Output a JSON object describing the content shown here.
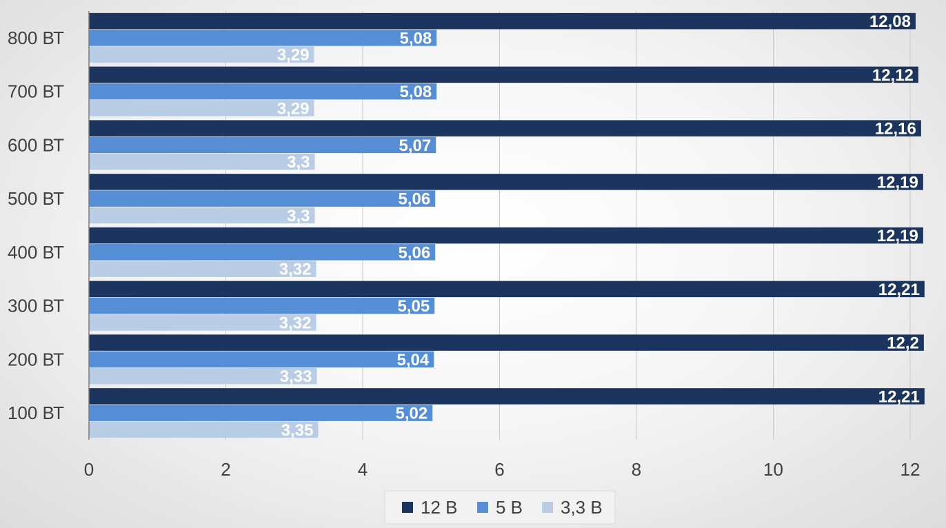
{
  "chart_data": {
    "type": "bar",
    "orientation": "horizontal",
    "categories": [
      "800 ВТ",
      "700 ВТ",
      "600 ВТ",
      "500 ВТ",
      "400 ВТ",
      "300 ВТ",
      "200 ВТ",
      "100 ВТ"
    ],
    "series": [
      {
        "name": "12 В",
        "color": "#1c355e",
        "values": [
          12.08,
          12.12,
          12.16,
          12.19,
          12.19,
          12.21,
          12.2,
          12.21
        ],
        "labels": [
          "12,08",
          "12,12",
          "12,16",
          "12,19",
          "12,19",
          "12,21",
          "12,2",
          "12,21"
        ]
      },
      {
        "name": "5 В",
        "color": "#558ed5",
        "values": [
          5.08,
          5.08,
          5.07,
          5.06,
          5.06,
          5.05,
          5.04,
          5.02
        ],
        "labels": [
          "5,08",
          "5,08",
          "5,07",
          "5,06",
          "5,06",
          "5,05",
          "5,04",
          "5,02"
        ]
      },
      {
        "name": "3,3 В",
        "color": "#b9cde5",
        "values": [
          3.29,
          3.29,
          3.3,
          3.3,
          3.32,
          3.32,
          3.33,
          3.35
        ],
        "labels": [
          "3,29",
          "3,29",
          "3,3",
          "3,3",
          "3,32",
          "3,32",
          "3,33",
          "3,35"
        ]
      }
    ],
    "xlim": [
      0,
      12
    ],
    "xticks": [
      0,
      2,
      4,
      6,
      8,
      10,
      12
    ],
    "xtick_labels": [
      "0",
      "2",
      "4",
      "6",
      "8",
      "10",
      "12"
    ],
    "grid": true,
    "legend_position": "bottom",
    "title": "",
    "xlabel": "",
    "ylabel": ""
  }
}
